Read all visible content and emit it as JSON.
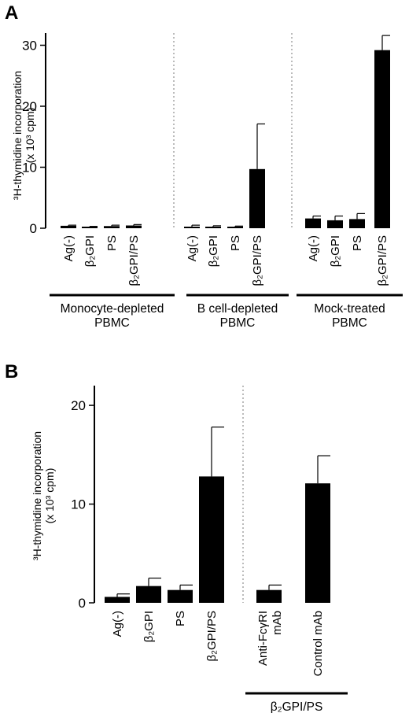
{
  "chart_data": [
    {
      "panel": "A",
      "type": "bar",
      "ylabel": "³H-thymidine incorporation (x 10³ cpm)",
      "ylim": [
        0,
        32
      ],
      "yticks": [
        0,
        10,
        20,
        30
      ],
      "groups": [
        {
          "label": "Monocyte-depleted PBMC",
          "categories": [
            "Ag(-)",
            "β₂GPI",
            "PS",
            "β₂GPI/PS"
          ],
          "values": [
            0.4,
            0.2,
            0.35,
            0.45
          ],
          "errors": [
            0.1,
            0.1,
            0.15,
            0.15
          ]
        },
        {
          "label": "B cell-depleted PBMC",
          "categories": [
            "Ag(-)",
            "β₂GPI",
            "PS",
            "β₂GPI/PS"
          ],
          "values": [
            0.2,
            0.25,
            0.2,
            9.7
          ],
          "errors": [
            0.3,
            0.15,
            0.15,
            7.4
          ]
        },
        {
          "label": "Mock-treated PBMC",
          "categories": [
            "Ag(-)",
            "β₂GPI",
            "PS",
            "β₂GPI/PS"
          ],
          "values": [
            1.6,
            1.3,
            1.5,
            29.2
          ],
          "errors": [
            0.4,
            0.7,
            0.9,
            2.4
          ]
        }
      ]
    },
    {
      "panel": "B",
      "type": "bar",
      "ylabel": "³H-thymidine incorporation (x 10³ cpm)",
      "ylim": [
        0,
        22
      ],
      "yticks": [
        0,
        10,
        20
      ],
      "groups": [
        {
          "label": "",
          "categories": [
            "Ag(-)",
            "β₂GPI",
            "PS",
            "β₂GPI/PS"
          ],
          "values": [
            0.6,
            1.7,
            1.3,
            12.8
          ],
          "errors": [
            0.3,
            0.8,
            0.5,
            5.0
          ]
        },
        {
          "label": "β₂GPI/PS",
          "categories": [
            "Anti-FcγRI mAb",
            "Control mAb"
          ],
          "values": [
            1.3,
            12.1
          ],
          "errors": [
            0.5,
            2.8
          ]
        }
      ]
    }
  ]
}
